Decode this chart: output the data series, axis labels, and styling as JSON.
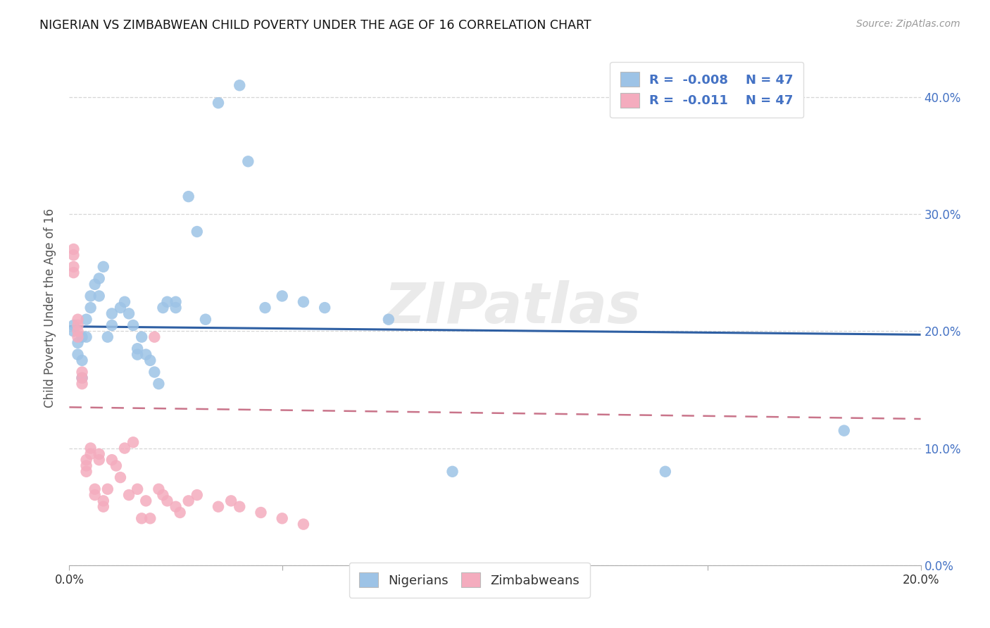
{
  "title": "NIGERIAN VS ZIMBABWEAN CHILD POVERTY UNDER THE AGE OF 16 CORRELATION CHART",
  "source": "Source: ZipAtlas.com",
  "xmin": 0.0,
  "xmax": 0.2,
  "ymin": 0.0,
  "ymax": 0.44,
  "legend_r_nigerian": "-0.008",
  "legend_r_zimbabwean": "-0.011",
  "legend_n": "47",
  "nigerian_color": "#9DC3E6",
  "zimbabwean_color": "#F4ACBE",
  "nigerian_line_color": "#2E5FA3",
  "zimbabwean_line_color": "#C9748A",
  "background_color": "#FFFFFF",
  "watermark": "ZIPatlas",
  "nigerian_line_y0": 0.204,
  "nigerian_line_y1": 0.197,
  "zimbabwean_line_y0": 0.135,
  "zimbabwean_line_y1": 0.125,
  "nigerian_x": [
    0.001,
    0.001,
    0.002,
    0.002,
    0.003,
    0.003,
    0.003,
    0.004,
    0.004,
    0.005,
    0.005,
    0.006,
    0.007,
    0.007,
    0.008,
    0.009,
    0.01,
    0.01,
    0.012,
    0.013,
    0.014,
    0.015,
    0.016,
    0.016,
    0.017,
    0.018,
    0.019,
    0.02,
    0.021,
    0.022,
    0.023,
    0.025,
    0.025,
    0.028,
    0.03,
    0.032,
    0.035,
    0.04,
    0.042,
    0.046,
    0.05,
    0.055,
    0.06,
    0.075,
    0.09,
    0.14,
    0.182
  ],
  "nigerian_y": [
    0.2,
    0.205,
    0.19,
    0.18,
    0.195,
    0.175,
    0.16,
    0.21,
    0.195,
    0.23,
    0.22,
    0.24,
    0.245,
    0.23,
    0.255,
    0.195,
    0.215,
    0.205,
    0.22,
    0.225,
    0.215,
    0.205,
    0.185,
    0.18,
    0.195,
    0.18,
    0.175,
    0.165,
    0.155,
    0.22,
    0.225,
    0.225,
    0.22,
    0.315,
    0.285,
    0.21,
    0.395,
    0.41,
    0.345,
    0.22,
    0.23,
    0.225,
    0.22,
    0.21,
    0.08,
    0.08,
    0.115
  ],
  "zimbabwean_x": [
    0.001,
    0.001,
    0.001,
    0.001,
    0.002,
    0.002,
    0.002,
    0.002,
    0.003,
    0.003,
    0.003,
    0.004,
    0.004,
    0.004,
    0.005,
    0.005,
    0.006,
    0.006,
    0.007,
    0.007,
    0.008,
    0.008,
    0.009,
    0.01,
    0.011,
    0.012,
    0.013,
    0.014,
    0.015,
    0.016,
    0.017,
    0.018,
    0.019,
    0.02,
    0.021,
    0.022,
    0.023,
    0.025,
    0.026,
    0.028,
    0.03,
    0.035,
    0.038,
    0.04,
    0.045,
    0.05,
    0.055
  ],
  "zimbabwean_y": [
    0.27,
    0.265,
    0.255,
    0.25,
    0.21,
    0.205,
    0.2,
    0.195,
    0.165,
    0.16,
    0.155,
    0.09,
    0.085,
    0.08,
    0.1,
    0.095,
    0.065,
    0.06,
    0.095,
    0.09,
    0.055,
    0.05,
    0.065,
    0.09,
    0.085,
    0.075,
    0.1,
    0.06,
    0.105,
    0.065,
    0.04,
    0.055,
    0.04,
    0.195,
    0.065,
    0.06,
    0.055,
    0.05,
    0.045,
    0.055,
    0.06,
    0.05,
    0.055,
    0.05,
    0.045,
    0.04,
    0.035
  ]
}
